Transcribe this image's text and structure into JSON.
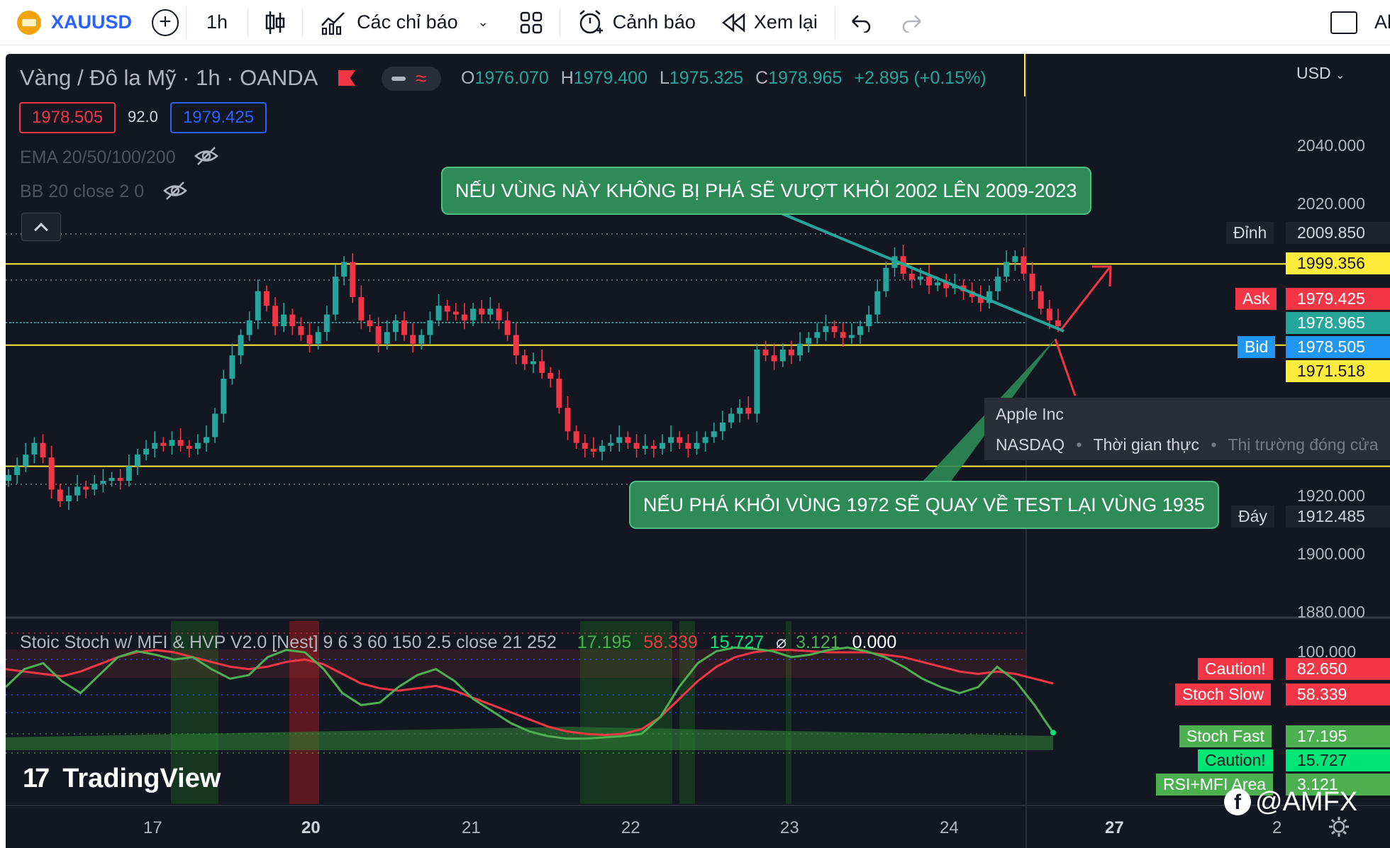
{
  "toolbar": {
    "symbol": "XAUUSD",
    "interval": "1h",
    "indicators_label": "Các chỉ báo",
    "alerts_label": "Cảnh báo",
    "replay_label": "Xem lại",
    "cut_text": "Al"
  },
  "legend": {
    "title": "Vàng / Đô la Mỹ · 1h · OANDA",
    "o_label": "O",
    "o_value": "1976.070",
    "h_label": "H",
    "h_value": "1979.400",
    "l_label": "L",
    "l_value": "1975.325",
    "c_label": "C",
    "c_value": "1978.965",
    "change": "+2.895 (+0.15%)",
    "bid_value": "1978.505",
    "spread": "92.0",
    "ask_value": "1979.425",
    "ema_label": "EMA 20/50/100/200",
    "bb_label": "BB 20 close 2 0"
  },
  "currency": "USD",
  "annotations": {
    "top": "NẾU VÙNG NÀY KHÔNG BỊ PHÁ SẼ VƯỢT KHỎI 2002 LÊN 2009-2023",
    "bottom": "NẾU PHÁ KHỎI VÙNG 1972 SẼ QUAY VỀ TEST LẠI VÙNG 1935"
  },
  "tooltip": {
    "name": "Apple Inc",
    "exchange": "NASDAQ",
    "realtime": "Thời gian thực",
    "market": "Thị trường đóng cửa"
  },
  "price_tags": {
    "top_label": "Đỉnh",
    "top_value": "2009.850",
    "resistance": "1999.356",
    "ask_label": "Ask",
    "ask_value": "1979.425",
    "last": "1978.965",
    "bid_label": "Bid",
    "bid_value": "1978.505",
    "support": "1971.518",
    "low_label": "Đáy",
    "low_value": "1912.485"
  },
  "osc": {
    "title": "Stoic Stoch w/ MFI & HVP V2.0 [Nest] 9 6 3 60 150 2.5 close 21 252",
    "v1": "17.195",
    "v2": "58.339",
    "v3": "15.727",
    "v4_symbol": "⌀",
    "v4": "3.121",
    "v5": "0.000",
    "tags": [
      {
        "label": "Caution!",
        "value": "82.650",
        "color": "#f23645"
      },
      {
        "label": "Stoch Slow",
        "value": "58.339",
        "color": "#f23645"
      },
      {
        "label": "Stoch Fast",
        "value": "17.195",
        "color": "#4caf50"
      },
      {
        "label": "Caution!",
        "value": "15.727",
        "color": "#00e676"
      },
      {
        "label": "RSI+MFI Area",
        "value": "3.121",
        "color": "#4caf50"
      }
    ],
    "scale_top": "100.000"
  },
  "watermark": "TradingView",
  "credit": "@AMFX",
  "chart_data": {
    "type": "candlestick",
    "symbol": "XAUUSD",
    "timeframe": "1h",
    "y_axis_labels": [
      "2040.000",
      "2020.000",
      "1920.000",
      "1900.000",
      "1880.000"
    ],
    "x_axis_labels": [
      "17",
      "20",
      "21",
      "22",
      "23",
      "24",
      "27",
      "2"
    ],
    "horizontal_levels": [
      1999.356,
      1971.518,
      1930.0
    ],
    "close_series": [
      1927,
      1930,
      1934,
      1938,
      1933,
      1922,
      1918,
      1920,
      1923,
      1922,
      1924,
      1925,
      1926,
      1925,
      1930,
      1934,
      1936,
      1938,
      1937,
      1939,
      1937,
      1936,
      1938,
      1940,
      1948,
      1960,
      1968,
      1975,
      1980,
      1990,
      1985,
      1978,
      1982,
      1978,
      1975,
      1972,
      1976,
      1982,
      1995,
      2000,
      1988,
      1980,
      1978,
      1972,
      1976,
      1980,
      1975,
      1972,
      1975,
      1980,
      1985,
      1983,
      1982,
      1980,
      1984,
      1982,
      1984,
      1980,
      1975,
      1968,
      1965,
      1966,
      1962,
      1960,
      1950,
      1942,
      1938,
      1936,
      1935,
      1937,
      1938,
      1940,
      1938,
      1936,
      1937,
      1936,
      1938,
      1940,
      1938,
      1936,
      1938,
      1940,
      1942,
      1945,
      1948,
      1950,
      1948,
      1970,
      1968,
      1966,
      1970,
      1968,
      1972,
      1974,
      1976,
      1978,
      1976,
      1974,
      1975,
      1978,
      1982,
      1990,
      1998,
      2002,
      1996,
      1994,
      1995,
      1992,
      1993,
      1991,
      1992,
      1990,
      1988,
      1986,
      1990,
      1995,
      2000,
      2002,
      1996,
      1990,
      1984,
      1980,
      1978
    ],
    "oscillator": {
      "stoch_fast": [
        55,
        70,
        75,
        60,
        50,
        65,
        80,
        85,
        82,
        78,
        80,
        70,
        62,
        65,
        80,
        86,
        84,
        70,
        50,
        40,
        42,
        55,
        65,
        70,
        60,
        45,
        35,
        25,
        18,
        14,
        12,
        12,
        13,
        14,
        16,
        30,
        55,
        75,
        85,
        88,
        87,
        85,
        80,
        82,
        86,
        88,
        85,
        80,
        72,
        62,
        55,
        50,
        55,
        72,
        60,
        40,
        17
      ],
      "stoch_slow": [
        70,
        68,
        66,
        64,
        68,
        74,
        80,
        84,
        86,
        84,
        80,
        76,
        72,
        70,
        72,
        76,
        78,
        74,
        66,
        58,
        54,
        52,
        54,
        56,
        52,
        46,
        40,
        34,
        28,
        22,
        18,
        16,
        15,
        16,
        20,
        30,
        45,
        60,
        72,
        80,
        84,
        86,
        86,
        85,
        84,
        84,
        84,
        82,
        80,
        76,
        72,
        68,
        66,
        68,
        66,
        62,
        58
      ]
    }
  }
}
